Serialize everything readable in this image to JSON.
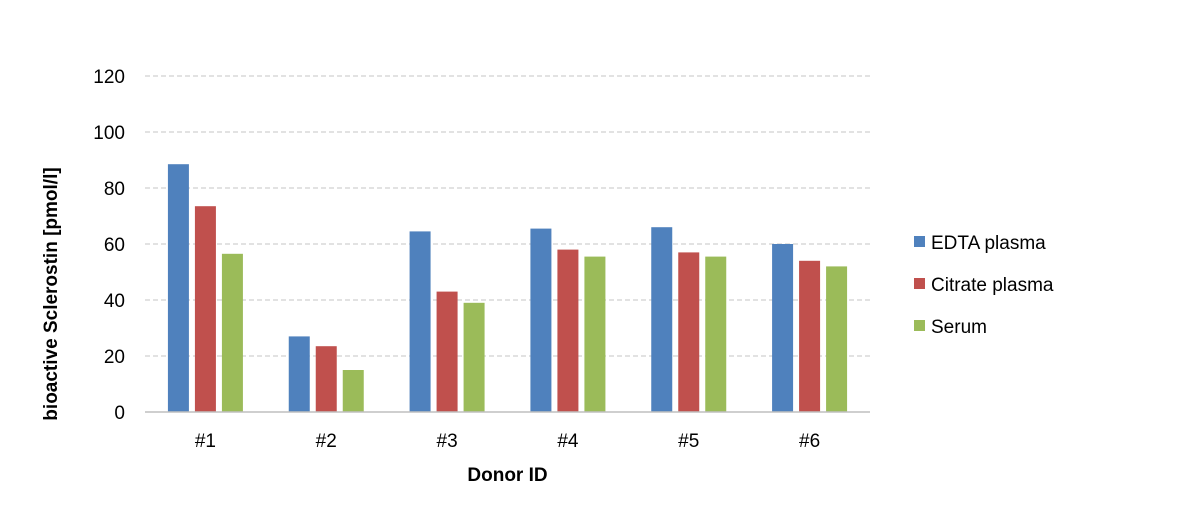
{
  "chart_data": {
    "type": "bar",
    "title": "",
    "xlabel": "Donor ID",
    "ylabel": "bioactive Sclerostin  [pmol/l]",
    "categories": [
      "#1",
      "#2",
      "#3",
      "#4",
      "#5",
      "#6"
    ],
    "ylim": [
      0,
      120
    ],
    "yticks": [
      0,
      20,
      40,
      60,
      80,
      100,
      120
    ],
    "grid": true,
    "legend_position": "right",
    "series": [
      {
        "name": "EDTA plasma",
        "color": "#4F81BD",
        "values": [
          88.5,
          27,
          64.5,
          65.5,
          66,
          60
        ]
      },
      {
        "name": "Citrate plasma",
        "color": "#C0504D",
        "values": [
          73.5,
          23.5,
          43,
          58,
          57,
          54
        ]
      },
      {
        "name": "Serum",
        "color": "#9BBB59",
        "values": [
          56.5,
          15,
          39,
          55.5,
          55.5,
          52
        ]
      }
    ]
  }
}
